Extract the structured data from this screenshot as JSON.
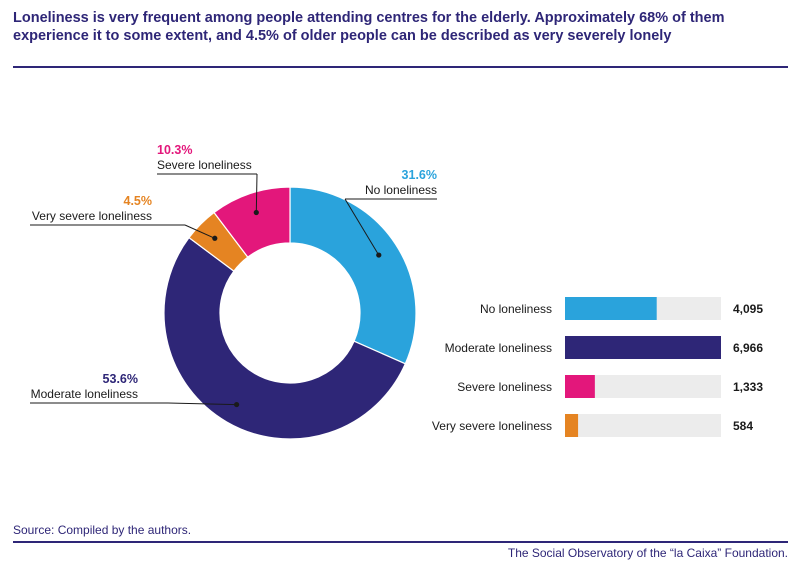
{
  "title": "Loneliness is very frequent among people attending centres for the elderly. Approximately 68% of them experience it to some extent, and 4.5% of older people can be described as very severely lonely",
  "source": "Source: Compiled by the authors.",
  "footer": "The Social Observatory of the “la Caixa” Foundation.",
  "chart_data": [
    {
      "type": "pie",
      "variant": "donut",
      "slices": [
        {
          "label": "No loneliness",
          "pct_label": "31.6%",
          "value": 31.6,
          "color": "#2aa3dc"
        },
        {
          "label": "Moderate loneliness",
          "pct_label": "53.6%",
          "value": 53.6,
          "color": "#2e2677"
        },
        {
          "label": "Very severe loneliness",
          "pct_label": "4.5%",
          "value": 4.5,
          "color": "#e58422"
        },
        {
          "label": "Severe loneliness",
          "pct_label": "10.3%",
          "value": 10.3,
          "color": "#e3177b"
        }
      ]
    },
    {
      "type": "bar",
      "orientation": "horizontal",
      "categories": [
        "No loneliness",
        "Moderate loneliness",
        "Severe loneliness",
        "Very severe loneliness"
      ],
      "values": [
        4095,
        6966,
        1333,
        584
      ],
      "value_labels": [
        "4,095",
        "6,966",
        "1,333",
        "584"
      ],
      "colors": [
        "#2aa3dc",
        "#2e2677",
        "#e3177b",
        "#e58422"
      ],
      "track_color": "#ececec",
      "xlim": [
        0,
        6966
      ]
    }
  ]
}
